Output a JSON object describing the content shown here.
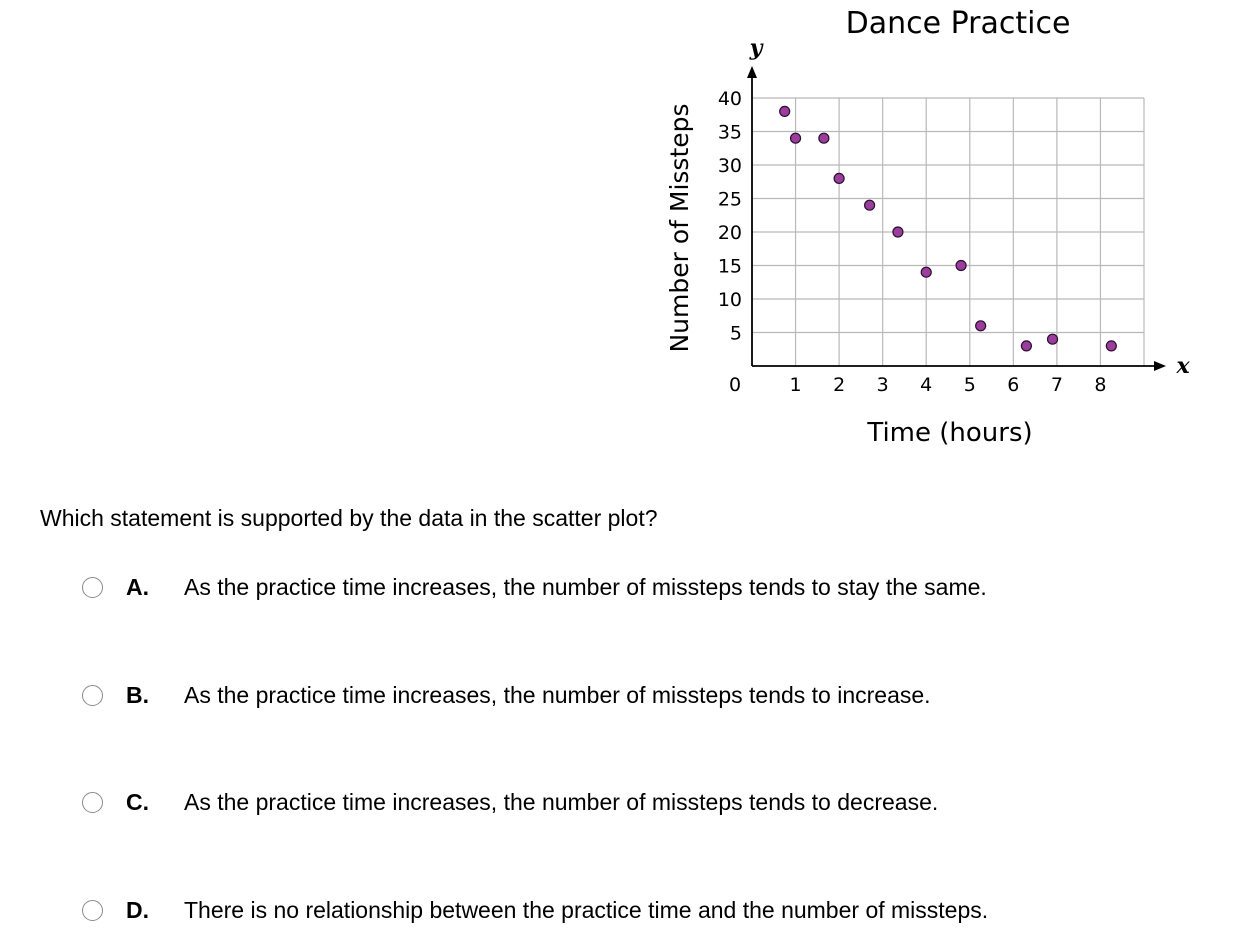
{
  "chart_data": {
    "type": "scatter",
    "title": "Dance Practice",
    "xlabel": "Time (hours)",
    "ylabel": "Number of Missteps",
    "x_axis_letter": "x",
    "y_axis_letter": "y",
    "origin_label": "0",
    "xlim": [
      0,
      9
    ],
    "ylim": [
      0,
      40
    ],
    "x_ticks": [
      1,
      2,
      3,
      4,
      5,
      6,
      7,
      8
    ],
    "y_ticks": [
      5,
      10,
      15,
      20,
      25,
      30,
      35,
      40
    ],
    "grid": true,
    "point_color": "#9b3d9c",
    "points": [
      {
        "x": 0.75,
        "y": 38
      },
      {
        "x": 1.0,
        "y": 34
      },
      {
        "x": 1.65,
        "y": 34
      },
      {
        "x": 2.0,
        "y": 28
      },
      {
        "x": 2.7,
        "y": 24
      },
      {
        "x": 3.35,
        "y": 20
      },
      {
        "x": 4.0,
        "y": 14
      },
      {
        "x": 4.8,
        "y": 15
      },
      {
        "x": 5.25,
        "y": 6
      },
      {
        "x": 6.3,
        "y": 3
      },
      {
        "x": 6.9,
        "y": 4
      },
      {
        "x": 8.25,
        "y": 3
      }
    ]
  },
  "question": {
    "text": "Which statement is supported by the data in the scatter plot?"
  },
  "options": [
    {
      "letter": "A.",
      "text": "As the practice time increases, the number of missteps tends to stay the same."
    },
    {
      "letter": "B.",
      "text": "As the practice time increases, the number of missteps tends to increase."
    },
    {
      "letter": "C.",
      "text": "As the practice time increases, the number of missteps tends to decrease."
    },
    {
      "letter": "D.",
      "text": "There is no relationship between the practice time and the number of missteps."
    }
  ]
}
